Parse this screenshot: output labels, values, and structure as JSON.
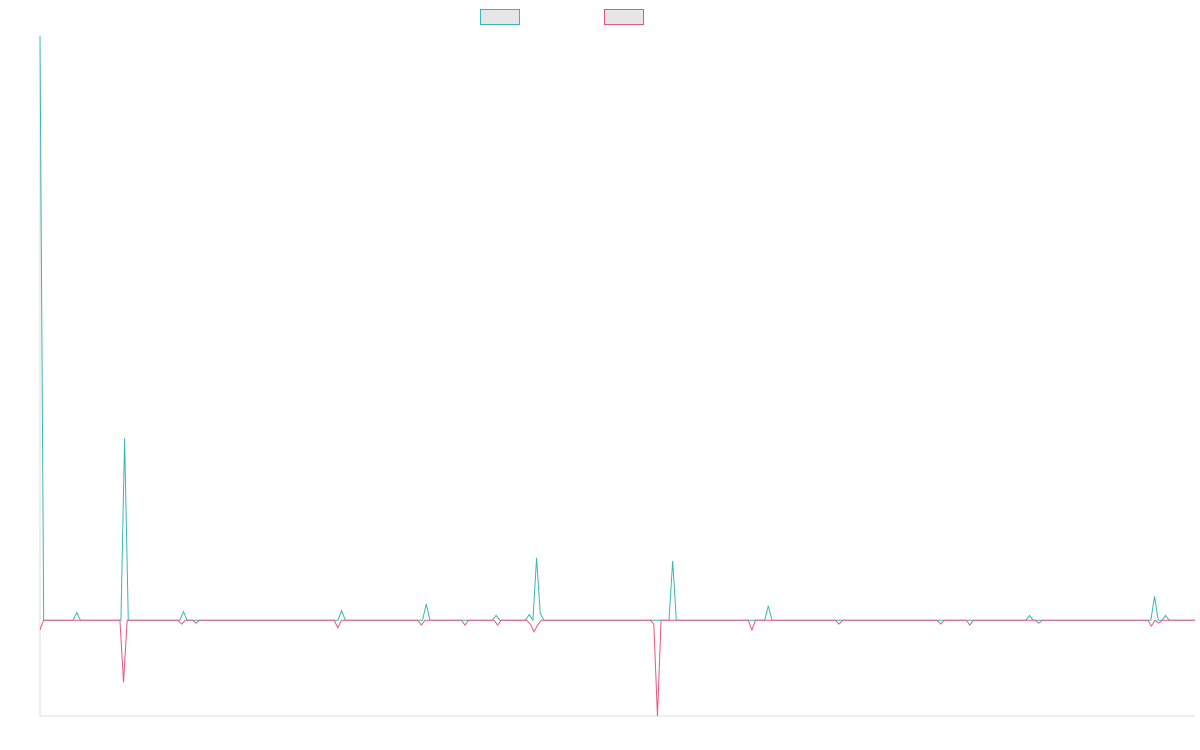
{
  "chart_data": {
    "type": "line",
    "title": "",
    "xlabel": "",
    "ylabel": "",
    "ylim": [
      -100,
      610
    ],
    "grid": false,
    "legend_position": "top-center",
    "colors": {
      "series_a": "#3ab6b6",
      "series_b": "#e8577e",
      "axis": "#dddddd"
    },
    "series": [
      {
        "name": "",
        "color": "#3ab6b6",
        "values": [
          610,
          0,
          0,
          0,
          0,
          0,
          0,
          0,
          0,
          0,
          8,
          0,
          0,
          0,
          0,
          0,
          0,
          0,
          0,
          0,
          0,
          0,
          0,
          190,
          0,
          0,
          0,
          0,
          0,
          0,
          0,
          0,
          0,
          0,
          0,
          0,
          0,
          0,
          0,
          9,
          0,
          0,
          0,
          0,
          0,
          0,
          0,
          0,
          0,
          0,
          0,
          0,
          0,
          0,
          0,
          0,
          0,
          0,
          0,
          0,
          0,
          0,
          0,
          0,
          0,
          0,
          0,
          0,
          0,
          0,
          0,
          0,
          0,
          0,
          0,
          0,
          0,
          0,
          0,
          0,
          0,
          0,
          10,
          0,
          0,
          0,
          0,
          0,
          0,
          0,
          0,
          0,
          0,
          0,
          0,
          0,
          0,
          0,
          0,
          0,
          0,
          0,
          0,
          0,
          0,
          17,
          0,
          0,
          0,
          0,
          0,
          0,
          0,
          0,
          0,
          0,
          0,
          0,
          0,
          0,
          0,
          0,
          0,
          0,
          5,
          0,
          0,
          0,
          0,
          0,
          0,
          0,
          0,
          6,
          0,
          65,
          7,
          0,
          0,
          0,
          0,
          0,
          0,
          0,
          0,
          0,
          0,
          0,
          0,
          0,
          0,
          0,
          0,
          0,
          0,
          0,
          0,
          0,
          0,
          0,
          0,
          0,
          0,
          0,
          0,
          0,
          0,
          0,
          0,
          0,
          0,
          0,
          62,
          0,
          0,
          0,
          0,
          0,
          0,
          0,
          0,
          0,
          0,
          0,
          0,
          0,
          0,
          0,
          0,
          0,
          0,
          0,
          0,
          0,
          0,
          0,
          0,
          0,
          15,
          0,
          0,
          0,
          0,
          0,
          0,
          0,
          0,
          0,
          0,
          0,
          0,
          0,
          0,
          0,
          0,
          0,
          0,
          0,
          0,
          0,
          0,
          0,
          0,
          0,
          0,
          0,
          0,
          0,
          0,
          0,
          0,
          0,
          0,
          0,
          0,
          0,
          0,
          0,
          0,
          0,
          0,
          0,
          0,
          0,
          0,
          0,
          0,
          0,
          0,
          0,
          0,
          0,
          0,
          0,
          0,
          0,
          0,
          0,
          0,
          0,
          0,
          0,
          0,
          0,
          0,
          0,
          0,
          0,
          0,
          5,
          0,
          0,
          0,
          0,
          0,
          0,
          0,
          0,
          0,
          0,
          0,
          0,
          0,
          0,
          0,
          0,
          0,
          0,
          0,
          0,
          0,
          0,
          0,
          0,
          0,
          0,
          0,
          0,
          0,
          0,
          0,
          0,
          0,
          25,
          0,
          0,
          5,
          0,
          0,
          0,
          0,
          0,
          0,
          0,
          0
        ]
      },
      {
        "name": "",
        "color": "#e8577e",
        "values": [
          -10,
          0,
          0,
          0,
          0,
          0,
          0,
          0,
          0,
          0,
          0,
          0,
          0,
          0,
          0,
          0,
          0,
          0,
          0,
          0,
          0,
          0,
          0,
          -65,
          0,
          0,
          0,
          0,
          0,
          0,
          0,
          0,
          0,
          0,
          0,
          0,
          0,
          0,
          0,
          -4,
          0,
          0,
          0,
          -3,
          0,
          0,
          0,
          0,
          0,
          0,
          0,
          0,
          0,
          0,
          0,
          0,
          0,
          0,
          0,
          0,
          0,
          0,
          0,
          0,
          0,
          0,
          0,
          0,
          0,
          0,
          0,
          0,
          0,
          0,
          0,
          0,
          0,
          0,
          0,
          0,
          0,
          0,
          -8,
          0,
          0,
          0,
          0,
          0,
          0,
          0,
          0,
          0,
          0,
          0,
          0,
          0,
          0,
          0,
          0,
          0,
          0,
          0,
          0,
          0,
          0,
          -5,
          0,
          0,
          0,
          0,
          0,
          0,
          0,
          0,
          0,
          0,
          0,
          -5,
          0,
          0,
          0,
          0,
          0,
          0,
          0,
          0,
          -5,
          0,
          0,
          0,
          0,
          0,
          0,
          0,
          0,
          -4,
          -12,
          -5,
          0,
          0,
          0,
          0,
          0,
          0,
          0,
          0,
          0,
          0,
          0,
          0,
          0,
          0,
          0,
          0,
          0,
          0,
          0,
          0,
          0,
          0,
          0,
          0,
          0,
          0,
          0,
          0,
          0,
          0,
          0,
          -4,
          -100,
          0,
          0,
          0,
          0,
          0,
          0,
          0,
          0,
          0,
          0,
          0,
          0,
          0,
          0,
          0,
          0,
          0,
          0,
          0,
          0,
          0,
          0,
          0,
          0,
          0,
          -10,
          0,
          0,
          0,
          0,
          0,
          0,
          0,
          0,
          0,
          0,
          0,
          0,
          0,
          0,
          0,
          0,
          0,
          0,
          0,
          0,
          0,
          0,
          0,
          -4,
          0,
          0,
          0,
          0,
          0,
          0,
          0,
          0,
          0,
          0,
          0,
          0,
          0,
          0,
          0,
          0,
          0,
          0,
          0,
          0,
          0,
          0,
          0,
          0,
          0,
          0,
          0,
          -4,
          0,
          0,
          0,
          0,
          0,
          0,
          0,
          -5,
          0,
          0,
          0,
          0,
          0,
          0,
          0,
          0,
          0,
          0,
          0,
          0,
          0,
          0,
          0,
          0,
          0,
          0,
          -3,
          0,
          0,
          0,
          0,
          0,
          0,
          0,
          0,
          0,
          0,
          0,
          0,
          0,
          0,
          0,
          0,
          0,
          0,
          0,
          0,
          0,
          0,
          0,
          0,
          0,
          0,
          0,
          0,
          0,
          0,
          -6,
          0,
          -3,
          0,
          0,
          0,
          0,
          0,
          0,
          0,
          0,
          0,
          0
        ]
      }
    ]
  }
}
